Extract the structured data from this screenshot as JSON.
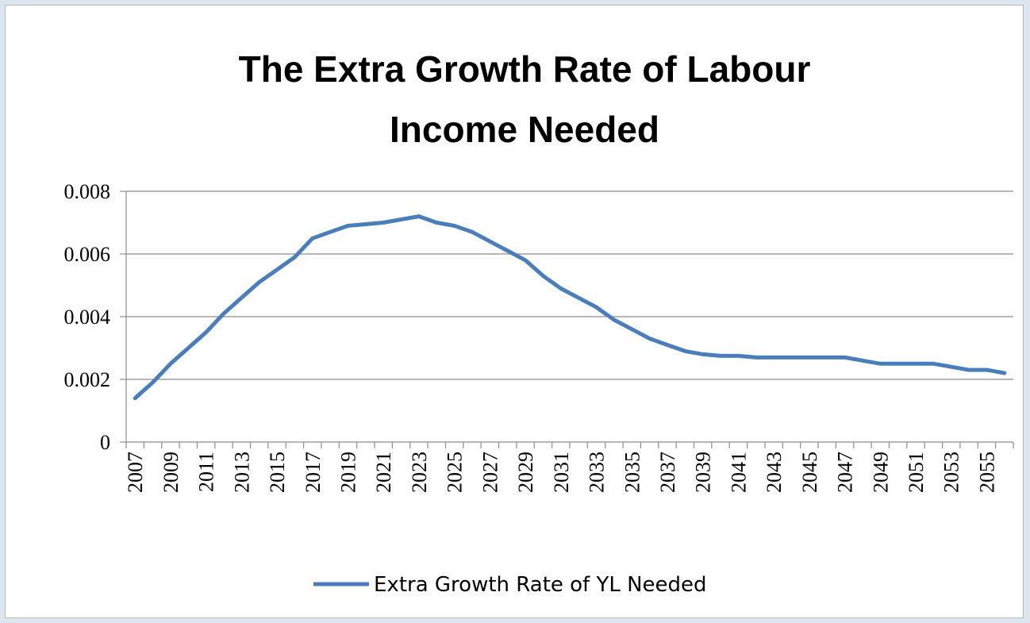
{
  "chart_data": {
    "type": "line",
    "title_lines": [
      "The Extra Growth Rate of Labour",
      "Income Needed"
    ],
    "xlabel": "",
    "ylabel": "",
    "x": [
      2007,
      2008,
      2009,
      2010,
      2011,
      2012,
      2013,
      2014,
      2015,
      2016,
      2017,
      2018,
      2019,
      2020,
      2021,
      2022,
      2023,
      2024,
      2025,
      2026,
      2027,
      2028,
      2029,
      2030,
      2031,
      2032,
      2033,
      2034,
      2035,
      2036,
      2037,
      2038,
      2039,
      2040,
      2041,
      2042,
      2043,
      2044,
      2045,
      2046,
      2047,
      2048,
      2049,
      2050,
      2051,
      2052,
      2053,
      2054,
      2055,
      2056
    ],
    "x_tick_labels": [
      "2007",
      "2009",
      "2011",
      "2013",
      "2015",
      "2017",
      "2019",
      "2021",
      "2023",
      "2025",
      "2027",
      "2029",
      "2031",
      "2033",
      "2035",
      "2037",
      "2039",
      "2041",
      "2043",
      "2045",
      "2047",
      "2049",
      "2051",
      "2053",
      "2055"
    ],
    "y_ticks": [
      0,
      0.002,
      0.004,
      0.006,
      0.008
    ],
    "y_tick_labels": [
      "0",
      "0.002",
      "0.004",
      "0.006",
      "0.008"
    ],
    "ylim": [
      0,
      0.008
    ],
    "grid": true,
    "legend_position": "bottom",
    "series": [
      {
        "name": "Extra Growth Rate of YL Needed",
        "color": "#4a7ebb",
        "values": [
          0.0014,
          0.0019,
          0.0025,
          0.003,
          0.0035,
          0.0041,
          0.0046,
          0.0051,
          0.0055,
          0.0059,
          0.0065,
          0.0067,
          0.0069,
          0.00695,
          0.007,
          0.0071,
          0.0072,
          0.007,
          0.0069,
          0.0067,
          0.0064,
          0.0061,
          0.0058,
          0.0053,
          0.0049,
          0.0046,
          0.0043,
          0.0039,
          0.0036,
          0.0033,
          0.0031,
          0.0029,
          0.0028,
          0.00275,
          0.00275,
          0.0027,
          0.0027,
          0.0027,
          0.0027,
          0.0027,
          0.0027,
          0.0026,
          0.0025,
          0.0025,
          0.0025,
          0.0025,
          0.0024,
          0.0023,
          0.0023,
          0.0022
        ]
      }
    ]
  }
}
